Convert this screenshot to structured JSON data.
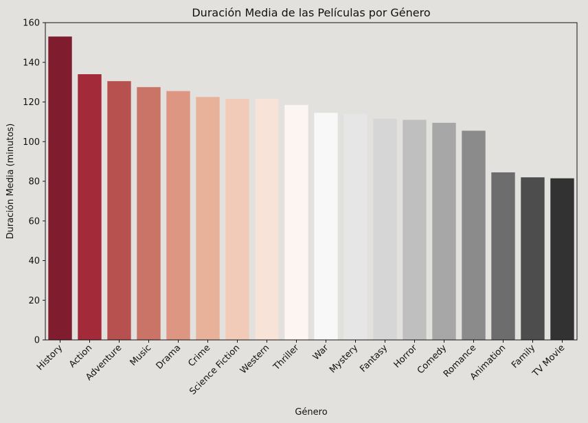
{
  "chart_data": {
    "type": "bar",
    "title": "Duración Media de las Películas por Género",
    "xlabel": "Género",
    "ylabel": "Duración Media (minutos)",
    "categories": [
      "History",
      "Action",
      "Adventure",
      "Music",
      "Drama",
      "Crime",
      "Science Fiction",
      "Western",
      "Thriller",
      "War",
      "Mystery",
      "Fantasy",
      "Horror",
      "Comedy",
      "Romance",
      "Animation",
      "Family",
      "TV Movie"
    ],
    "values": [
      153,
      134,
      130.5,
      127.5,
      125.5,
      122.5,
      121.5,
      121.5,
      118.5,
      114.5,
      114,
      111.5,
      111,
      109.5,
      105.5,
      84.5,
      82,
      81.5
    ],
    "bar_colors": [
      "#7f1c2d",
      "#a32a39",
      "#b75150",
      "#c97466",
      "#dc9681",
      "#e8b29a",
      "#f2cbb8",
      "#f7e3d7",
      "#fdf5f2",
      "#f8f8f8",
      "#e6e6e6",
      "#d6d6d6",
      "#bfbfbf",
      "#a7a7a7",
      "#8b8b8b",
      "#6d6d6d",
      "#4d4d4d",
      "#323232"
    ],
    "ylim": [
      0,
      160
    ],
    "yticks": [
      0,
      20,
      40,
      60,
      80,
      100,
      120,
      140,
      160
    ],
    "grid": false,
    "legend": "none"
  }
}
